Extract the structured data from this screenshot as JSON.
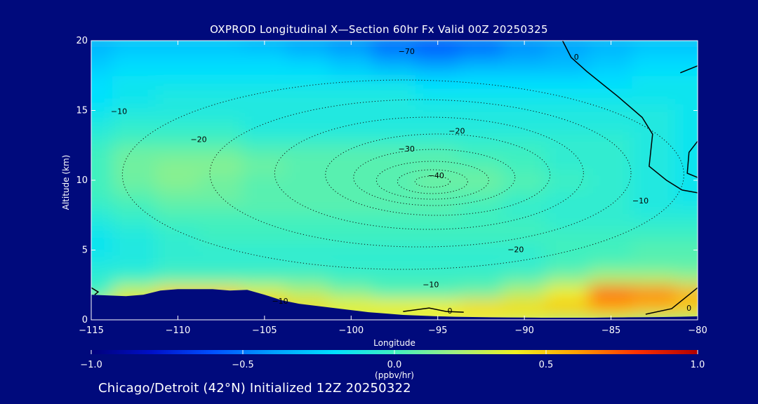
{
  "page": {
    "title": "OXPROD Longitudinal X—Section 60hr  Fx Valid 00Z 20250325",
    "footer": "Chicago/Detroit (42°N) Initialized 12Z 20250322"
  },
  "colors": {
    "background": "#000a7c",
    "terrain": "#000a7c",
    "text": "#ffffff",
    "colormap": [
      "#00007a",
      "#0010c8",
      "#0050ff",
      "#00a0ff",
      "#00e0ff",
      "#40f0c0",
      "#a0f080",
      "#f0f020",
      "#ffa000",
      "#ff3000",
      "#b00000"
    ]
  },
  "chart_data": {
    "type": "heatmap",
    "title": "OXPROD Longitudinal X—Section 60hr  Fx Valid 00Z 20250325",
    "xlabel": "Longitude",
    "ylabel": "Altitude (km)",
    "xlim": [
      -115,
      -80
    ],
    "ylim": [
      0,
      20
    ],
    "xticks": [
      -115,
      -110,
      -105,
      -100,
      -95,
      -90,
      -85,
      -80
    ],
    "xtick_labels": [
      "−115",
      "−110",
      "−105",
      "−100",
      "−95",
      "−90",
      "−85",
      "−80"
    ],
    "yticks": [
      0,
      5,
      10,
      15,
      20
    ],
    "ytick_labels": [
      "0",
      "5",
      "10",
      "15",
      "20"
    ],
    "colorbar": {
      "min": -1.0,
      "max": 1.0,
      "units": "(ppbv/hr)",
      "ticks": [
        -1.0,
        -0.5,
        0.0,
        0.5,
        1.0
      ],
      "tick_labels": [
        "−1.0",
        "−0.5",
        "0.0",
        "0.5",
        "1.0"
      ]
    },
    "approximate_field": {
      "description": "Oxidant production rate (ppbv/hr) sampled on a coarse grid",
      "lon": [
        -115,
        -112.5,
        -110,
        -107.5,
        -105,
        -102.5,
        -100,
        -97.5,
        -95,
        -92.5,
        -90,
        -87.5,
        -85,
        -82.5,
        -80
      ],
      "alt": [
        0,
        1,
        2,
        3,
        4,
        5,
        6,
        7,
        8,
        9,
        10,
        11,
        12,
        13,
        14,
        15,
        16,
        17,
        18,
        19,
        20
      ],
      "values": [
        [
          0.05,
          0.1,
          0.15,
          0.2,
          0.25,
          0.25,
          0.3,
          0.35,
          0.4,
          0.4,
          0.35,
          0.3,
          0.3,
          0.25,
          0.25
        ],
        [
          0.3,
          0.45,
          0.6,
          0.6,
          0.5,
          0.45,
          0.4,
          0.4,
          0.4,
          0.45,
          0.45,
          0.5,
          0.6,
          0.55,
          0.5
        ],
        [
          0.0,
          0.3,
          0.45,
          0.45,
          0.35,
          0.25,
          0.15,
          0.05,
          0.05,
          0.1,
          0.25,
          0.4,
          0.7,
          0.65,
          0.55
        ],
        [
          -0.05,
          0.0,
          0.05,
          0.05,
          0.05,
          0.05,
          0.0,
          0.0,
          0.0,
          0.0,
          0.05,
          0.15,
          0.25,
          0.25,
          0.2
        ],
        [
          -0.1,
          -0.1,
          -0.05,
          -0.05,
          -0.05,
          -0.05,
          -0.05,
          -0.05,
          -0.05,
          -0.05,
          -0.05,
          0.0,
          0.05,
          0.05,
          0.05
        ],
        [
          -0.15,
          -0.1,
          -0.05,
          -0.05,
          -0.05,
          -0.05,
          -0.05,
          -0.05,
          -0.05,
          -0.05,
          -0.05,
          0.0,
          0.0,
          0.05,
          0.05
        ],
        [
          -0.15,
          -0.1,
          -0.05,
          0.0,
          0.0,
          0.0,
          0.0,
          0.0,
          0.0,
          0.0,
          0.0,
          0.0,
          0.0,
          0.0,
          0.0
        ],
        [
          -0.1,
          -0.05,
          0.0,
          0.0,
          0.0,
          0.0,
          0.0,
          0.0,
          0.0,
          0.0,
          0.0,
          -0.05,
          -0.05,
          -0.05,
          -0.05
        ],
        [
          -0.05,
          0.0,
          0.05,
          0.05,
          0.05,
          0.05,
          0.05,
          0.05,
          0.05,
          0.0,
          -0.05,
          -0.05,
          -0.05,
          -0.1,
          -0.1
        ],
        [
          0.0,
          0.05,
          0.1,
          0.1,
          0.05,
          0.05,
          0.05,
          0.05,
          0.05,
          0.05,
          0.0,
          -0.05,
          -0.05,
          -0.1,
          -0.15
        ],
        [
          0.0,
          0.1,
          0.15,
          0.1,
          0.05,
          0.05,
          0.05,
          0.05,
          0.1,
          0.1,
          0.05,
          0.0,
          -0.05,
          -0.1,
          -0.15
        ],
        [
          0.0,
          0.1,
          0.15,
          0.15,
          0.1,
          0.05,
          0.05,
          0.05,
          0.05,
          0.05,
          0.0,
          -0.05,
          -0.05,
          -0.1,
          -0.15
        ],
        [
          0.0,
          0.1,
          0.1,
          0.1,
          0.05,
          0.05,
          0.05,
          0.05,
          0.05,
          0.0,
          0.0,
          -0.05,
          -0.05,
          -0.1,
          -0.15
        ],
        [
          -0.05,
          0.0,
          0.0,
          0.0,
          -0.05,
          -0.05,
          -0.05,
          -0.05,
          -0.05,
          -0.05,
          -0.05,
          -0.05,
          -0.05,
          -0.1,
          -0.15
        ],
        [
          -0.1,
          -0.05,
          -0.05,
          -0.05,
          -0.1,
          -0.1,
          -0.1,
          -0.1,
          -0.1,
          -0.1,
          -0.1,
          -0.1,
          -0.1,
          -0.1,
          -0.15
        ],
        [
          -0.15,
          -0.1,
          -0.1,
          -0.1,
          -0.1,
          -0.1,
          -0.1,
          -0.1,
          -0.1,
          -0.1,
          -0.1,
          -0.1,
          -0.1,
          -0.1,
          -0.15
        ],
        [
          -0.2,
          -0.15,
          -0.1,
          -0.1,
          -0.1,
          -0.1,
          -0.1,
          -0.1,
          -0.15,
          -0.15,
          -0.15,
          -0.15,
          -0.15,
          -0.15,
          -0.15
        ],
        [
          -0.2,
          -0.15,
          -0.15,
          -0.15,
          -0.15,
          -0.15,
          -0.15,
          -0.15,
          -0.2,
          -0.2,
          -0.2,
          -0.2,
          -0.2,
          -0.15,
          -0.15
        ],
        [
          -0.25,
          -0.2,
          -0.2,
          -0.2,
          -0.2,
          -0.2,
          -0.25,
          -0.3,
          -0.35,
          -0.3,
          -0.3,
          -0.3,
          -0.25,
          -0.2,
          -0.2
        ],
        [
          -0.3,
          -0.25,
          -0.25,
          -0.25,
          -0.25,
          -0.3,
          -0.35,
          -0.45,
          -0.5,
          -0.45,
          -0.4,
          -0.35,
          -0.3,
          -0.25,
          -0.25
        ],
        [
          -0.35,
          -0.3,
          -0.3,
          -0.3,
          -0.35,
          -0.4,
          -0.45,
          -0.55,
          -0.6,
          -0.55,
          -0.45,
          -0.4,
          -0.35,
          -0.3,
          -0.3
        ]
      ]
    },
    "terrain_km": {
      "lon": [
        -115,
        -114,
        -113,
        -112,
        -111,
        -110,
        -109,
        -108,
        -107,
        -106,
        -105,
        -104,
        -103,
        -102,
        -101,
        -100,
        -99,
        -98,
        -97,
        -96,
        -95,
        -94,
        -93,
        -92,
        -91,
        -90,
        -89,
        -88,
        -87,
        -86,
        -85,
        -84,
        -83,
        -82,
        -81,
        -80
      ],
      "alt": [
        1.8,
        1.75,
        1.7,
        1.8,
        2.1,
        2.2,
        2.2,
        2.2,
        2.1,
        2.15,
        1.8,
        1.4,
        1.15,
        1.0,
        0.85,
        0.7,
        0.55,
        0.45,
        0.35,
        0.3,
        0.25,
        0.22,
        0.2,
        0.18,
        0.17,
        0.16,
        0.15,
        0.15,
        0.15,
        0.15,
        0.17,
        0.18,
        0.19,
        0.2,
        0.22,
        0.25
      ]
    },
    "contour_labels": [
      {
        "text": "−70",
        "lon": -96.8,
        "alt": 19.2
      },
      {
        "text": "−10",
        "lon": -113.4,
        "alt": 14.9
      },
      {
        "text": "−20",
        "lon": -108.8,
        "alt": 12.9
      },
      {
        "text": "−20",
        "lon": -93.9,
        "alt": 13.5
      },
      {
        "text": "−30",
        "lon": -96.8,
        "alt": 12.2
      },
      {
        "text": "−40",
        "lon": -95.1,
        "alt": 10.3
      },
      {
        "text": "−10",
        "lon": -83.3,
        "alt": 8.5
      },
      {
        "text": "−20",
        "lon": -90.5,
        "alt": 5.0
      },
      {
        "text": "−10",
        "lon": -95.4,
        "alt": 2.5
      },
      {
        "text": "−10",
        "lon": -104.1,
        "alt": 1.3
      },
      {
        "text": "0",
        "lon": -94.3,
        "alt": 0.6
      },
      {
        "text": "0",
        "lon": -80.5,
        "alt": 0.8
      },
      {
        "text": "0",
        "lon": -87.0,
        "alt": 18.8
      }
    ]
  }
}
